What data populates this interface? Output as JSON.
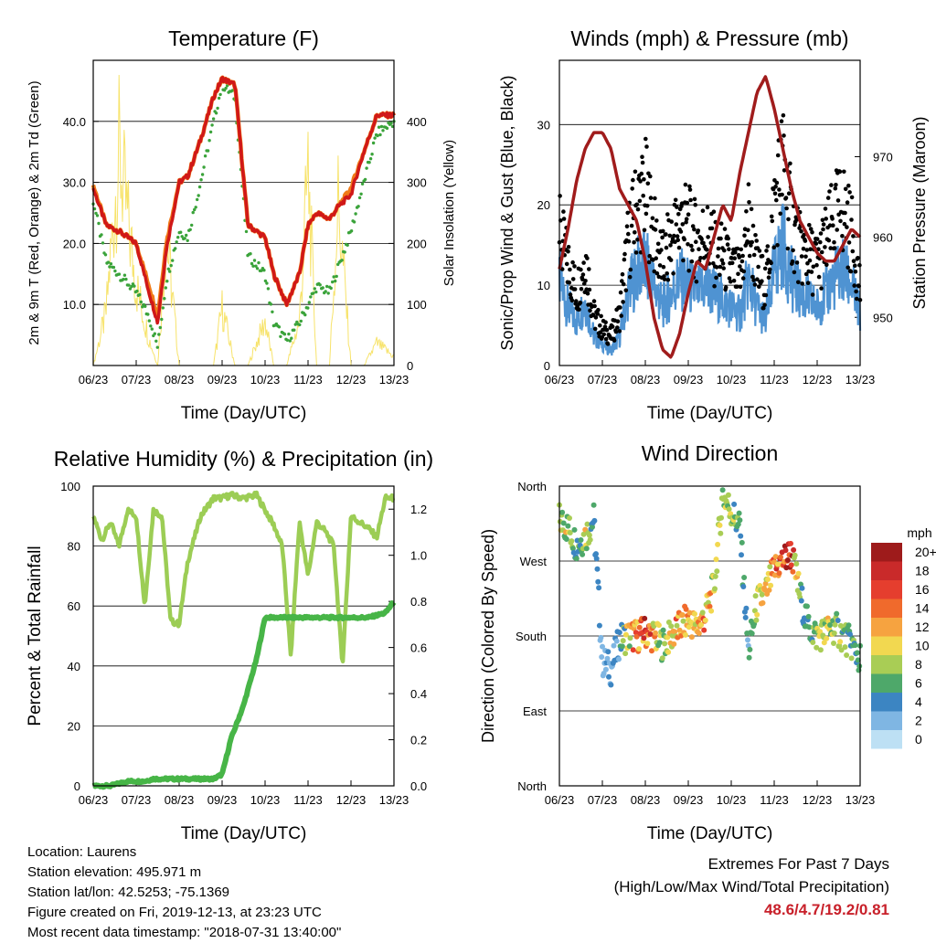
{
  "x_ticks": [
    "06/23",
    "07/23",
    "08/23",
    "09/23",
    "10/23",
    "11/23",
    "12/23",
    "13/23"
  ],
  "colors": {
    "temp_2m": "#d01818",
    "temp_9m": "#f07a18",
    "dewpoint": "#3aa33a",
    "solar": "#f7e36b",
    "wind_sonic": "#4f93d2",
    "wind_gust": "#000000",
    "pressure": "#a01c1c",
    "rh": "#9ccd55",
    "precip": "#47b547"
  },
  "chart_data": [
    {
      "id": "temperature",
      "type": "line",
      "title": "Temperature (F)",
      "xlabel": "Time (Day/UTC)",
      "ylabel": "2m & 9m T (Red, Orange) & 2m Td (Green)",
      "y2label": "Solar Insolation (Yellow)",
      "ylim": [
        0,
        50
      ],
      "y2lim": [
        0,
        500
      ],
      "yticks": [
        "10.0",
        "20.0",
        "30.0",
        "40.0"
      ],
      "y2ticks": [
        "0",
        "100",
        "200",
        "300",
        "400"
      ],
      "grid": true,
      "x": [
        0,
        0.3,
        0.6,
        1,
        1.3,
        1.5,
        1.7,
        2,
        2.2,
        2.5,
        2.8,
        3,
        3.3,
        3.6,
        4,
        4.2,
        4.5,
        4.8,
        5,
        5.2,
        5.5,
        5.7,
        6,
        6.3,
        6.6,
        7
      ],
      "series": [
        {
          "name": "2m T",
          "values": [
            29,
            23,
            22,
            20,
            12,
            7,
            19,
            30,
            31,
            37,
            44,
            47,
            46,
            23,
            21,
            15,
            10,
            15,
            23,
            25,
            24,
            26,
            28,
            35,
            41,
            41
          ]
        },
        {
          "name": "9m T",
          "values": [
            29.5,
            23,
            22,
            20,
            13,
            8,
            20,
            30,
            31,
            37,
            44,
            47,
            46,
            23,
            21,
            15,
            10,
            15,
            23,
            25,
            24,
            26,
            29,
            35,
            41,
            41
          ]
        },
        {
          "name": "2m Td",
          "values": [
            27,
            17,
            15,
            12,
            8,
            3,
            14,
            22,
            21,
            30,
            40,
            46,
            44,
            18,
            15,
            7,
            4,
            7,
            10,
            13,
            12,
            16,
            22,
            30,
            38,
            40
          ]
        },
        {
          "name": "Solar",
          "values": [
            0,
            120,
            480,
            180,
            60,
            0,
            300,
            0,
            0,
            0,
            0,
            130,
            0,
            0,
            100,
            0,
            0,
            100,
            440,
            0,
            0,
            370,
            0,
            0,
            50,
            20
          ]
        }
      ]
    },
    {
      "id": "winds",
      "type": "scatter",
      "title": "Winds (mph) & Pressure (mb)",
      "xlabel": "Time (Day/UTC)",
      "ylabel": "Sonic/Prop Wind & Gust (Blue, Black)",
      "y2label": "Station Pressure (Maroon)",
      "ylim": [
        0,
        38
      ],
      "y2lim": [
        944,
        982
      ],
      "yticks": [
        "0",
        "10",
        "20",
        "30"
      ],
      "y2ticks": [
        "950",
        "960",
        "970"
      ],
      "grid": true,
      "x": [
        0,
        0.2,
        0.4,
        0.6,
        0.8,
        1,
        1.2,
        1.4,
        1.6,
        1.8,
        2,
        2.2,
        2.4,
        2.6,
        2.8,
        3,
        3.2,
        3.4,
        3.6,
        3.8,
        4,
        4.2,
        4.4,
        4.6,
        4.8,
        5,
        5.2,
        5.4,
        5.6,
        5.8,
        6,
        6.2,
        6.4,
        6.6,
        6.8,
        7
      ],
      "series": [
        {
          "name": "Sonic/Prop Wind",
          "values": [
            12,
            8,
            6,
            9,
            4,
            3,
            2,
            4,
            10,
            13,
            14,
            11,
            8,
            10,
            12,
            11,
            10,
            11,
            10,
            9,
            8,
            7,
            12,
            8,
            6,
            13,
            17,
            12,
            10,
            9,
            8,
            10,
            12,
            13,
            11,
            7
          ]
        },
        {
          "name": "Gust",
          "values": [
            18,
            14,
            10,
            15,
            7,
            5,
            4,
            7,
            17,
            22,
            24,
            18,
            14,
            17,
            20,
            19,
            17,
            18,
            16,
            15,
            13,
            12,
            20,
            13,
            11,
            22,
            28,
            20,
            16,
            15,
            14,
            17,
            20,
            22,
            18,
            11
          ]
        },
        {
          "name": "Station Pressure",
          "values": [
            956,
            961,
            967,
            971,
            973,
            973,
            971,
            966,
            964,
            962,
            957,
            950,
            946,
            945,
            948,
            953,
            957,
            956,
            960,
            964,
            962,
            968,
            973,
            978,
            980,
            976,
            971,
            966,
            962,
            960,
            958,
            957,
            957,
            959,
            961,
            960
          ]
        }
      ]
    },
    {
      "id": "humidity",
      "type": "line",
      "title": "Relative Humidity (%) & Precipitation (in)",
      "xlabel": "Time (Day/UTC)",
      "ylabel": "Percent & Total Rainfall",
      "ylim": [
        0,
        100
      ],
      "y2lim": [
        0,
        1.3
      ],
      "yticks": [
        "0",
        "20",
        "40",
        "60",
        "80",
        "100"
      ],
      "y2ticks": [
        "0.0",
        "0.2",
        "0.4",
        "0.6",
        "0.8",
        "1.0",
        "1.2"
      ],
      "grid": true,
      "x": [
        0,
        0.2,
        0.4,
        0.6,
        0.8,
        1,
        1.2,
        1.4,
        1.6,
        1.8,
        2,
        2.2,
        2.5,
        2.8,
        3,
        3.2,
        3.5,
        3.8,
        4,
        4.2,
        4.4,
        4.6,
        4.8,
        5,
        5.2,
        5.4,
        5.6,
        5.8,
        6,
        6.2,
        6.4,
        6.6,
        6.8,
        7
      ],
      "series": [
        {
          "name": "Relative Humidity",
          "values": [
            90,
            82,
            88,
            80,
            92,
            90,
            60,
            92,
            90,
            55,
            54,
            75,
            90,
            96,
            96,
            97,
            96,
            97,
            92,
            87,
            80,
            43,
            88,
            70,
            88,
            85,
            80,
            40,
            90,
            88,
            86,
            83,
            96,
            96
          ]
        },
        {
          "name": "Total Precipitation",
          "values": [
            0,
            0,
            0,
            0.01,
            0.02,
            0.02,
            0.02,
            0.03,
            0.03,
            0.03,
            0.03,
            0.03,
            0.03,
            0.03,
            0.05,
            0.2,
            0.35,
            0.55,
            0.73,
            0.73,
            0.73,
            0.73,
            0.73,
            0.73,
            0.73,
            0.73,
            0.73,
            0.73,
            0.73,
            0.73,
            0.73,
            0.74,
            0.75,
            0.8
          ]
        }
      ]
    },
    {
      "id": "direction",
      "type": "scatter",
      "title": "Wind Direction",
      "xlabel": "Time (Day/UTC)",
      "ylabel": "Direction (Colored By Speed)",
      "ylim": [
        0,
        360
      ],
      "yticks": [
        "North",
        "East",
        "South",
        "West",
        "North"
      ],
      "grid": true,
      "legend": {
        "title": "mph",
        "labels": [
          "20+",
          "18",
          "16",
          "14",
          "12",
          "10",
          "8",
          "6",
          "4",
          "2",
          "0"
        ],
        "colors": [
          "#9e1b1b",
          "#c92a2a",
          "#e53e2e",
          "#f06a2c",
          "#f6a340",
          "#f2d850",
          "#a9cd55",
          "#4ea86a",
          "#3c85c2",
          "#7fb6e3",
          "#bde0f4"
        ],
        "position": "right"
      },
      "x": [
        0,
        0.2,
        0.4,
        0.6,
        0.8,
        1,
        1.2,
        1.4,
        1.6,
        1.8,
        2,
        2.2,
        2.4,
        2.6,
        2.8,
        3,
        3.2,
        3.4,
        3.6,
        3.8,
        4,
        4.2,
        4.4,
        4.6,
        4.8,
        5,
        5.2,
        5.4,
        5.6,
        5.8,
        6,
        6.2,
        6.4,
        6.6,
        6.8,
        7
      ],
      "series": [
        {
          "name": "Direction",
          "values": [
            320,
            310,
            290,
            300,
            320,
            150,
            140,
            175,
            180,
            180,
            185,
            180,
            170,
            180,
            190,
            200,
            190,
            205,
            240,
            350,
            330,
            310,
            160,
            220,
            230,
            260,
            270,
            280,
            230,
            190,
            180,
            185,
            190,
            180,
            170,
            150
          ]
        },
        {
          "name": "Speed",
          "values": [
            8,
            10,
            6,
            9,
            5,
            2,
            3,
            4,
            10,
            14,
            16,
            12,
            7,
            10,
            13,
            12,
            11,
            12,
            10,
            9,
            8,
            6,
            4,
            8,
            10,
            14,
            16,
            18,
            6,
            5,
            8,
            9,
            8,
            7,
            6,
            5
          ]
        }
      ]
    }
  ],
  "info": {
    "location": "Location: Laurens",
    "elevation": "Station elevation: 495.971 m",
    "latlon": "Station lat/lon: 42.5253; -75.1369",
    "created": "Figure created on Fri, 2019-12-13, at 23:23 UTC",
    "recent": "Most recent data timestamp: \"2018-07-31 13:40:00\""
  },
  "extremes": {
    "title": "Extremes For Past 7 Days",
    "subtitle": "(High/Low/Max Wind/Total Precipitation)",
    "values": "48.6/4.7/19.2/0.81"
  }
}
